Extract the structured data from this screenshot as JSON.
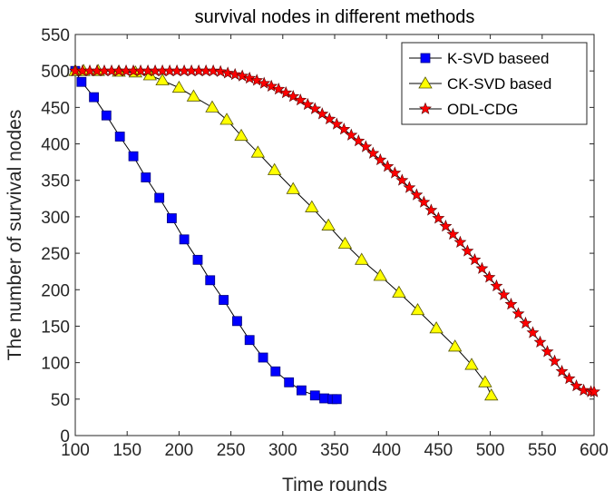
{
  "chart_data": {
    "type": "line",
    "title": "survival nodes in different methods",
    "xlabel": "Time rounds",
    "ylabel": "The number of survival nodes",
    "xlim": [
      100,
      600
    ],
    "ylim": [
      0,
      550
    ],
    "xticks": [
      100,
      150,
      200,
      250,
      300,
      350,
      400,
      450,
      500,
      550,
      600
    ],
    "yticks": [
      0,
      50,
      100,
      150,
      200,
      250,
      300,
      350,
      400,
      450,
      500,
      550
    ],
    "legend_position": "top-right",
    "grid": false,
    "series": [
      {
        "name": "K-SVD baseed",
        "color": "#0000ff",
        "edge_color": "#000080",
        "marker": "square",
        "x": [
          100,
          106,
          118,
          130,
          143,
          156,
          168,
          181,
          193,
          205,
          218,
          230,
          243,
          256,
          268,
          281,
          293,
          306,
          318,
          331,
          340,
          348,
          352
        ],
        "y": [
          500,
          485,
          464,
          439,
          410,
          383,
          354,
          326,
          298,
          269,
          241,
          213,
          186,
          157,
          131,
          107,
          88,
          73,
          62,
          55,
          51,
          50,
          50
        ]
      },
      {
        "name": "CK-SVD based",
        "color": "#ffff00",
        "edge_color": "#555500",
        "marker": "triangle",
        "x": [
          100,
          108,
          122,
          142,
          158,
          172,
          184,
          200,
          214,
          232,
          246,
          260,
          276,
          292,
          310,
          328,
          344,
          360,
          376,
          394,
          412,
          430,
          448,
          466,
          482,
          495,
          501
        ],
        "y": [
          500,
          500,
          500,
          499,
          498,
          494,
          487,
          477,
          465,
          450,
          433,
          411,
          388,
          364,
          338,
          313,
          288,
          263,
          241,
          219,
          196,
          172,
          147,
          122,
          97,
          73,
          55
        ]
      },
      {
        "name": "ODL-CDG",
        "color": "#ff0000",
        "edge_color": "#550000",
        "marker": "star",
        "x": [
          100,
          107,
          114,
          121,
          128,
          135,
          142,
          149,
          156,
          163,
          170,
          177,
          184,
          191,
          198,
          205,
          212,
          219,
          226,
          233,
          240,
          247,
          254,
          261,
          268,
          275,
          282,
          289,
          296,
          303,
          310,
          317,
          324,
          331,
          338,
          345,
          352,
          359,
          366,
          373,
          380,
          387,
          394,
          401,
          408,
          415,
          422,
          429,
          436,
          443,
          450,
          457,
          464,
          471,
          478,
          485,
          492,
          499,
          506,
          513,
          520,
          527,
          534,
          541,
          548,
          555,
          562,
          569,
          576,
          583,
          590,
          597,
          600
        ],
        "y": [
          500,
          500,
          500,
          500,
          500,
          500,
          500,
          500,
          500,
          500,
          500,
          500,
          500,
          500,
          500,
          500,
          500,
          500,
          500,
          500,
          499,
          497,
          495,
          493,
          490,
          487,
          483,
          479,
          475,
          470,
          465,
          460,
          454,
          448,
          441,
          434,
          427,
          420,
          412,
          404,
          396,
          387,
          378,
          369,
          360,
          350,
          340,
          330,
          320,
          309,
          298,
          287,
          276,
          265,
          253,
          241,
          229,
          217,
          205,
          193,
          180,
          167,
          154,
          141,
          128,
          115,
          102,
          88,
          78,
          68,
          62,
          60,
          60
        ]
      }
    ]
  }
}
